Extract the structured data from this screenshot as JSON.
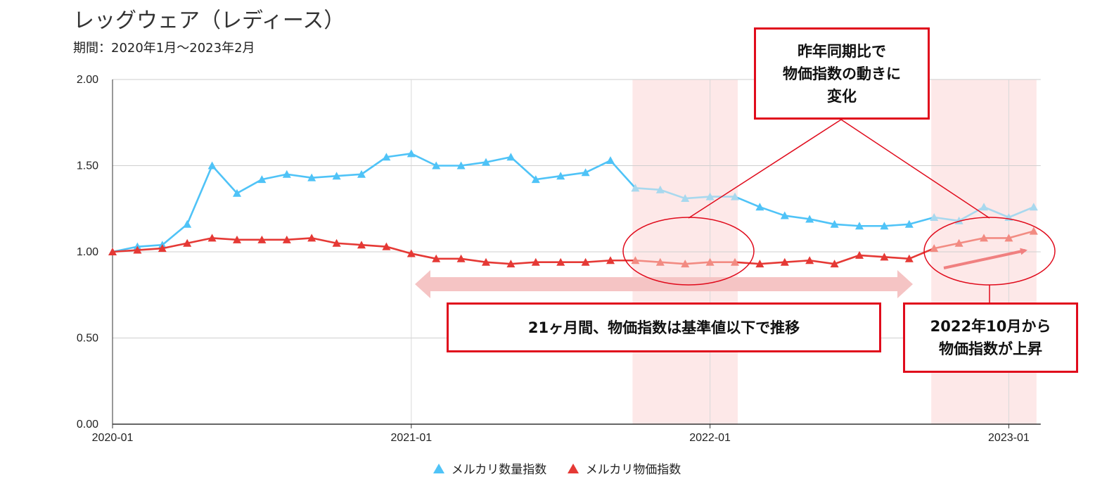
{
  "title": "レッグウェア（レディース）",
  "subtitle": "期間：2020年1月〜2023年2月",
  "annotations": {
    "yoy_box": [
      "昨年同期比で",
      "物価指数の動きに",
      "変化"
    ],
    "range_box": "21ヶ月間、物価指数は基準値以下で推移",
    "rise_box": [
      "2022年10月から",
      "物価指数が上昇"
    ]
  },
  "colors": {
    "quantity": "#4fc3f7",
    "quantity_faded": "#a8d8ee",
    "price": "#e53935",
    "price_faded": "#f28b82",
    "highlight": "#fde8e8",
    "callout": "#e00b1c",
    "arrow": "#f5c4c4"
  },
  "chart_data": {
    "type": "line",
    "x": [
      "2020-01",
      "2020-02",
      "2020-03",
      "2020-04",
      "2020-05",
      "2020-06",
      "2020-07",
      "2020-08",
      "2020-09",
      "2020-10",
      "2020-11",
      "2020-12",
      "2021-01",
      "2021-02",
      "2021-03",
      "2021-04",
      "2021-05",
      "2021-06",
      "2021-07",
      "2021-08",
      "2021-09",
      "2021-10",
      "2021-11",
      "2021-12",
      "2022-01",
      "2022-02",
      "2022-03",
      "2022-04",
      "2022-05",
      "2022-06",
      "2022-07",
      "2022-08",
      "2022-09",
      "2022-10",
      "2022-11",
      "2022-12",
      "2023-01",
      "2023-02"
    ],
    "xticks": [
      "2020-01",
      "2021-01",
      "2022-01",
      "2023-01"
    ],
    "yticks": [
      "0.00",
      "0.50",
      "1.00",
      "1.50",
      "2.00"
    ],
    "ylim": [
      0,
      2
    ],
    "grid": true,
    "legend_position": "bottom",
    "series": [
      {
        "name": "メルカリ数量指数",
        "values": [
          1.0,
          1.03,
          1.04,
          1.16,
          1.5,
          1.34,
          1.42,
          1.45,
          1.43,
          1.44,
          1.45,
          1.55,
          1.57,
          1.5,
          1.5,
          1.52,
          1.55,
          1.42,
          1.44,
          1.46,
          1.53,
          1.37,
          1.36,
          1.31,
          1.32,
          1.32,
          1.26,
          1.21,
          1.19,
          1.16,
          1.15,
          1.15,
          1.16,
          1.2,
          1.18,
          1.26,
          1.2,
          1.26
        ]
      },
      {
        "name": "メルカリ物価指数",
        "values": [
          1.0,
          1.01,
          1.02,
          1.05,
          1.08,
          1.07,
          1.07,
          1.07,
          1.08,
          1.05,
          1.04,
          1.03,
          0.99,
          0.96,
          0.96,
          0.94,
          0.93,
          0.94,
          0.94,
          0.94,
          0.95,
          0.95,
          0.94,
          0.93,
          0.94,
          0.94,
          0.93,
          0.94,
          0.95,
          0.93,
          0.98,
          0.97,
          0.96,
          1.02,
          1.05,
          1.08,
          1.08,
          1.12
        ]
      }
    ],
    "highlight_ranges": [
      [
        "2021-10",
        "2022-02"
      ],
      [
        "2022-10",
        "2023-02"
      ]
    ]
  }
}
